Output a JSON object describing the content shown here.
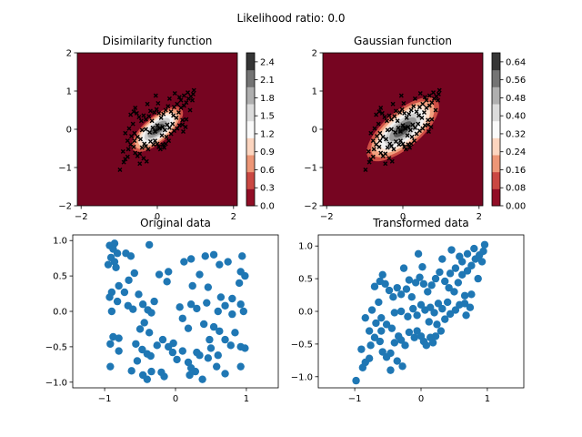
{
  "suptitle": "Likelihood ratio: 0.0",
  "colors": {
    "point_blue": "#1f77b4",
    "colormap_RdGy_dark": "#67001f",
    "colormap_RdGy_mid": "#fafafa",
    "colormap_RdGy_black": "#1a1a1a"
  },
  "chart_data": [
    {
      "type": "heatmap",
      "title": "Disimilarity function",
      "xlim": [
        -2.1,
        2.1
      ],
      "ylim": [
        -2,
        2
      ],
      "x_ticks": [
        "−2",
        "0",
        "2"
      ],
      "x_tick_values": [
        -2,
        0,
        2
      ],
      "y_ticks": [
        "−2",
        "−1",
        "0",
        "1",
        "2"
      ],
      "y_tick_values": [
        -2,
        -1,
        0,
        1,
        2
      ],
      "colormap": "RdGy",
      "colorbar_ticks": [
        "0.0",
        "0.3",
        "0.6",
        "0.9",
        "1.2",
        "1.5",
        "1.8",
        "2.1",
        "2.4"
      ],
      "colorbar_range": [
        0,
        2.55
      ],
      "overlay": "transformed data points (black x markers)"
    },
    {
      "type": "heatmap",
      "title": "Gaussian function",
      "xlim": [
        -2.1,
        2.1
      ],
      "ylim": [
        -2,
        2
      ],
      "x_ticks": [
        "−2",
        "0",
        "2"
      ],
      "x_tick_values": [
        -2,
        0,
        2
      ],
      "y_ticks": [
        "−2",
        "−1",
        "0",
        "1",
        "2"
      ],
      "y_tick_values": [
        -2,
        -1,
        0,
        1,
        2
      ],
      "colormap": "RdGy",
      "colorbar_ticks": [
        "0.00",
        "0.08",
        "0.16",
        "0.24",
        "0.32",
        "0.40",
        "0.48",
        "0.56",
        "0.64"
      ],
      "colorbar_range": [
        0,
        0.68
      ],
      "overlay": "transformed data points (black x markers)"
    },
    {
      "type": "scatter",
      "title": "Original data",
      "xlim": [
        -1.45,
        1.45
      ],
      "ylim": [
        -1.08,
        1.08
      ],
      "x_ticks": [
        "−1",
        "0",
        "1"
      ],
      "x_tick_values": [
        -1,
        0,
        1
      ],
      "y_ticks": [
        "−1.0",
        "−0.5",
        "0.0",
        "0.5",
        "1.0"
      ],
      "y_tick_values": [
        -1,
        -0.5,
        0,
        0.5,
        1
      ],
      "points": [
        [
          -0.93,
          0.93
        ],
        [
          -0.86,
          0.96
        ],
        [
          -0.88,
          0.88
        ],
        [
          -0.82,
          0.82
        ],
        [
          -0.91,
          0.76
        ],
        [
          -0.86,
          0.7
        ],
        [
          -0.95,
          0.66
        ],
        [
          -0.84,
          0.62
        ],
        [
          -0.7,
          0.82
        ],
        [
          -0.63,
          0.78
        ],
        [
          -0.37,
          0.94
        ],
        [
          -0.58,
          0.54
        ],
        [
          -0.66,
          0.44
        ],
        [
          -0.8,
          0.36
        ],
        [
          -0.9,
          0.27
        ],
        [
          -0.72,
          0.27
        ],
        [
          -0.93,
          0.2
        ],
        [
          -0.82,
          0.14
        ],
        [
          -0.9,
          0.0
        ],
        [
          -0.67,
          0.08
        ],
        [
          -0.6,
          0.03
        ],
        [
          -0.52,
          0.24
        ],
        [
          -0.46,
          0.1
        ],
        [
          -0.39,
          0.02
        ],
        [
          -0.3,
          0.14
        ],
        [
          -0.23,
          0.52
        ],
        [
          -0.1,
          0.56
        ],
        [
          -0.12,
          0.42
        ],
        [
          -0.34,
          -0.02
        ],
        [
          -0.44,
          -0.16
        ],
        [
          -0.5,
          -0.25
        ],
        [
          -0.37,
          -0.3
        ],
        [
          -0.56,
          -0.46
        ],
        [
          -0.8,
          -0.38
        ],
        [
          -0.88,
          -0.36
        ],
        [
          -0.92,
          -0.46
        ],
        [
          -0.8,
          -0.56
        ],
        [
          -0.47,
          -0.54
        ],
        [
          -0.4,
          -0.6
        ],
        [
          -0.35,
          -0.63
        ],
        [
          -0.54,
          -0.7
        ],
        [
          -0.92,
          -0.78
        ],
        [
          -0.62,
          -0.84
        ],
        [
          -0.46,
          -0.9
        ],
        [
          -0.4,
          -0.96
        ],
        [
          -0.34,
          -0.85
        ],
        [
          -0.2,
          -0.86
        ],
        [
          -0.16,
          -0.92
        ],
        [
          -0.26,
          -0.48
        ],
        [
          -0.18,
          -0.4
        ],
        [
          -0.1,
          -0.5
        ],
        [
          -0.04,
          -0.58
        ],
        [
          -0.03,
          -0.45
        ],
        [
          0.02,
          -0.68
        ],
        [
          0.1,
          -0.56
        ],
        [
          0.18,
          -0.72
        ],
        [
          0.2,
          -0.9
        ],
        [
          0.22,
          -0.8
        ],
        [
          0.28,
          -0.85
        ],
        [
          0.3,
          -0.58
        ],
        [
          0.34,
          -0.62
        ],
        [
          0.38,
          -0.96
        ],
        [
          0.46,
          -0.66
        ],
        [
          0.5,
          -0.52
        ],
        [
          0.58,
          -0.78
        ],
        [
          0.6,
          -0.62
        ],
        [
          0.7,
          -0.4
        ],
        [
          0.78,
          -0.48
        ],
        [
          0.92,
          -0.5
        ],
        [
          0.98,
          -0.52
        ],
        [
          0.92,
          -0.78
        ],
        [
          0.7,
          -0.88
        ],
        [
          0.84,
          -0.3
        ],
        [
          0.62,
          -0.28
        ],
        [
          0.54,
          -0.22
        ],
        [
          0.48,
          -0.4
        ],
        [
          0.4,
          -0.18
        ],
        [
          0.18,
          -0.24
        ],
        [
          0.1,
          -0.1
        ],
        [
          0.06,
          0.06
        ],
        [
          0.22,
          0.1
        ],
        [
          0.3,
          0.04
        ],
        [
          0.44,
          0.12
        ],
        [
          0.6,
          0.0
        ],
        [
          0.7,
          0.08
        ],
        [
          0.8,
          0.18
        ],
        [
          0.92,
          0.1
        ],
        [
          0.96,
          0.0
        ],
        [
          0.8,
          -0.04
        ],
        [
          0.9,
          0.4
        ],
        [
          0.98,
          0.5
        ],
        [
          0.92,
          0.56
        ],
        [
          0.94,
          0.78
        ],
        [
          0.74,
          0.7
        ],
        [
          0.62,
          0.66
        ],
        [
          0.54,
          0.8
        ],
        [
          0.42,
          0.78
        ],
        [
          0.34,
          0.52
        ],
        [
          0.22,
          0.74
        ],
        [
          0.12,
          0.7
        ],
        [
          0.24,
          0.36
        ],
        [
          0.46,
          0.34
        ],
        [
          0.64,
          0.2
        ]
      ]
    },
    {
      "type": "scatter",
      "title": "Transformed data",
      "xlim": [
        -1.55,
        1.55
      ],
      "ylim": [
        -1.17,
        1.17
      ],
      "x_ticks": [
        "−1",
        "0",
        "1"
      ],
      "x_tick_values": [
        -1,
        0,
        1
      ],
      "y_ticks": [
        "−1.0",
        "−0.5",
        "0.0",
        "0.5",
        "1.0"
      ],
      "y_tick_values": [
        -1,
        -0.5,
        0,
        0.5,
        1
      ],
      "points": [
        [
          -0.98,
          -1.06
        ],
        [
          -0.88,
          -0.86
        ],
        [
          -0.84,
          -0.78
        ],
        [
          -0.78,
          -0.72
        ],
        [
          -0.9,
          -0.58
        ],
        [
          -0.76,
          -0.52
        ],
        [
          -0.7,
          -0.4
        ],
        [
          -0.62,
          -0.46
        ],
        [
          -0.58,
          -0.62
        ],
        [
          -0.52,
          -0.7
        ],
        [
          -0.46,
          -0.64
        ],
        [
          -0.4,
          -0.48
        ],
        [
          -0.34,
          -0.38
        ],
        [
          -0.3,
          -0.44
        ],
        [
          -0.24,
          -0.52
        ],
        [
          -0.18,
          -0.32
        ],
        [
          -0.1,
          -0.4
        ],
        [
          -0.06,
          -0.3
        ],
        [
          0.0,
          -0.38
        ],
        [
          0.04,
          -0.46
        ],
        [
          0.08,
          -0.52
        ],
        [
          0.14,
          -0.4
        ],
        [
          0.18,
          -0.48
        ],
        [
          0.22,
          -0.38
        ],
        [
          0.3,
          -0.3
        ],
        [
          -0.78,
          -0.3
        ],
        [
          -0.68,
          -0.18
        ],
        [
          -0.6,
          -0.1
        ],
        [
          -0.52,
          -0.2
        ],
        [
          -0.44,
          -0.26
        ],
        [
          -0.4,
          -0.02
        ],
        [
          -0.3,
          0.0
        ],
        [
          -0.2,
          -0.08
        ],
        [
          -0.12,
          0.04
        ],
        [
          -0.06,
          -0.06
        ],
        [
          0.0,
          0.1
        ],
        [
          0.06,
          0.02
        ],
        [
          0.14,
          0.06
        ],
        [
          0.2,
          -0.02
        ],
        [
          0.26,
          0.12
        ],
        [
          0.32,
          0.04
        ],
        [
          0.4,
          0.14
        ],
        [
          0.44,
          -0.04
        ],
        [
          0.52,
          0.02
        ],
        [
          0.58,
          0.1
        ],
        [
          0.66,
          0.12
        ],
        [
          0.74,
          0.06
        ],
        [
          0.68,
          -0.06
        ],
        [
          -0.7,
          0.38
        ],
        [
          -0.62,
          0.46
        ],
        [
          -0.58,
          0.56
        ],
        [
          -0.54,
          0.42
        ],
        [
          -0.48,
          0.32
        ],
        [
          -0.42,
          0.22
        ],
        [
          -0.36,
          0.36
        ],
        [
          -0.3,
          0.26
        ],
        [
          -0.22,
          0.34
        ],
        [
          -0.14,
          0.22
        ],
        [
          -0.08,
          0.44
        ],
        [
          -0.02,
          0.52
        ],
        [
          0.04,
          0.42
        ],
        [
          0.1,
          0.3
        ],
        [
          0.16,
          0.4
        ],
        [
          0.22,
          0.5
        ],
        [
          0.28,
          0.6
        ],
        [
          0.36,
          0.46
        ],
        [
          0.42,
          0.36
        ],
        [
          0.5,
          0.3
        ],
        [
          0.56,
          0.44
        ],
        [
          0.62,
          0.56
        ],
        [
          0.7,
          0.62
        ],
        [
          0.76,
          0.7
        ],
        [
          0.82,
          0.8
        ],
        [
          0.88,
          0.86
        ],
        [
          0.94,
          0.92
        ],
        [
          0.96,
          1.02
        ],
        [
          0.8,
          0.96
        ],
        [
          0.7,
          0.88
        ],
        [
          0.62,
          0.76
        ],
        [
          0.52,
          0.66
        ],
        [
          0.44,
          0.58
        ],
        [
          -0.84,
          -0.1
        ],
        [
          -0.74,
          0.02
        ],
        [
          -0.64,
          0.14
        ],
        [
          -0.26,
          0.66
        ],
        [
          -0.18,
          0.48
        ],
        [
          0.32,
          0.8
        ],
        [
          0.66,
          0.24
        ],
        [
          0.76,
          0.26
        ],
        [
          0.86,
          0.5
        ],
        [
          0.92,
          0.76
        ],
        [
          -0.36,
          -0.76
        ],
        [
          -0.28,
          -0.84
        ],
        [
          -0.46,
          -0.9
        ],
        [
          0.12,
          -0.16
        ],
        [
          0.24,
          -0.2
        ],
        [
          0.36,
          -0.12
        ],
        [
          -0.04,
          0.88
        ],
        [
          0.02,
          0.68
        ],
        [
          0.46,
          0.94
        ],
        [
          0.58,
          0.84
        ],
        [
          -0.6,
          -0.3
        ]
      ]
    }
  ]
}
